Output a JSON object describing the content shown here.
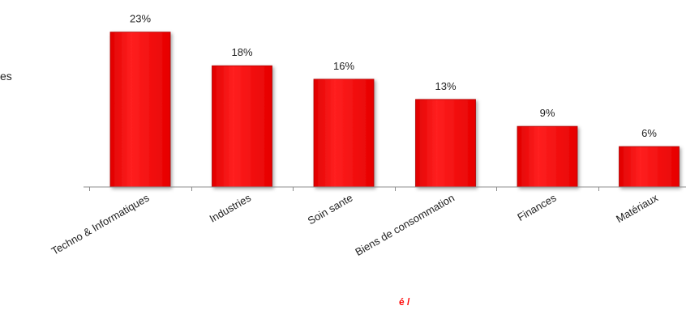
{
  "chart_data": {
    "type": "bar",
    "categories": [
      "Techno & Informatiques",
      "Industries",
      "Soin sante",
      "Biens de consommation",
      "Finances",
      "Matériaux"
    ],
    "values": [
      23,
      18,
      16,
      13,
      9,
      6
    ],
    "value_labels": [
      "23%",
      "18%",
      "16%",
      "13%",
      "9%",
      "6%"
    ],
    "unit": "%",
    "ylim": [
      0,
      25
    ],
    "grid": false,
    "legend": "none",
    "bar_color": "#ff0000",
    "bar_border_color": "#b00000"
  },
  "fragments": {
    "left_text": "es",
    "bottom_text": "é /"
  }
}
